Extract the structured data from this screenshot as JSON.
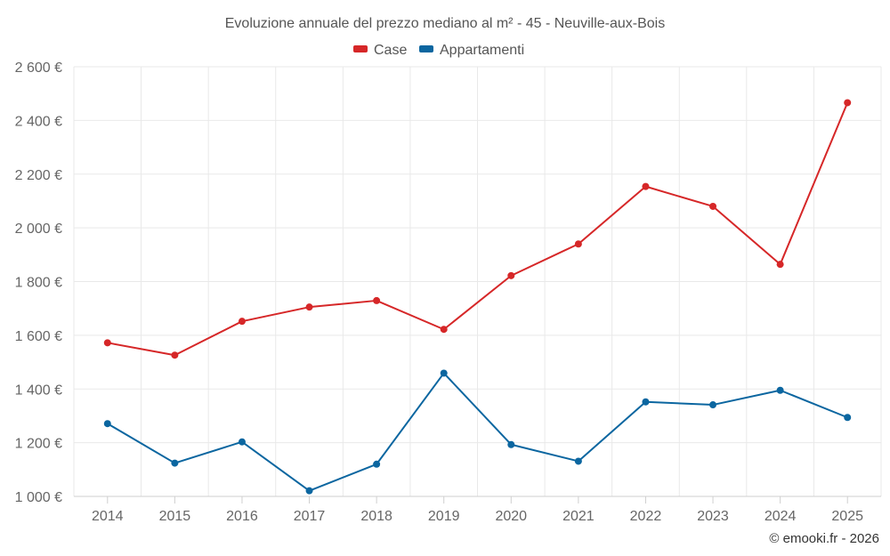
{
  "chart_data": {
    "type": "line",
    "title": "Evoluzione annuale del prezzo mediano al m² - 45 - Neuville-aux-Bois",
    "categories": [
      "2014",
      "2015",
      "2016",
      "2017",
      "2018",
      "2019",
      "2020",
      "2021",
      "2022",
      "2023",
      "2024",
      "2025"
    ],
    "series": [
      {
        "name": "Case",
        "color": "#d62728",
        "values": [
          1572,
          1526,
          1652,
          1705,
          1729,
          1622,
          1822,
          1940,
          2154,
          2080,
          1864,
          2466
        ]
      },
      {
        "name": "Appartamenti",
        "color": "#0b66a0",
        "values": [
          1271,
          1124,
          1203,
          1021,
          1120,
          1459,
          1193,
          1131,
          1352,
          1341,
          1395,
          1294
        ]
      }
    ],
    "ylim": [
      1000,
      2600
    ],
    "yticks": [
      1000,
      1200,
      1400,
      1600,
      1800,
      2000,
      2200,
      2400,
      2600
    ],
    "ytick_labels": [
      "1 000 €",
      "1 200 €",
      "1 400 €",
      "1 600 €",
      "1 800 €",
      "2 000 €",
      "2 200 €",
      "2 400 €",
      "2 600 €"
    ],
    "xlabel": "",
    "ylabel": "",
    "grid": true,
    "legend_position": "top-center"
  },
  "credit": "© emooki.fr - 2026"
}
